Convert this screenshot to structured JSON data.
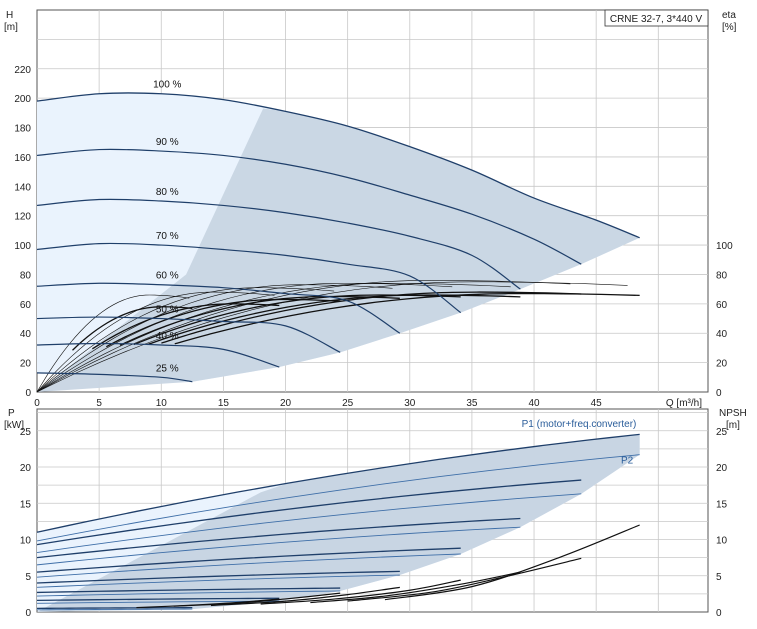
{
  "chart_data": [
    {
      "type": "line",
      "panel": "head-efficiency",
      "title": "CRNE 32-7, 3*440 V",
      "xlabel": "Q [m³/h]",
      "ylabel_left": [
        "H",
        "[m]"
      ],
      "ylabel_right": [
        "eta",
        "[%]"
      ],
      "xlim": [
        0,
        54
      ],
      "ylim": [
        0,
        260
      ],
      "y2lim": [
        0,
        260
      ],
      "xticks": [
        0,
        5,
        10,
        15,
        20,
        25,
        30,
        35,
        40,
        45
      ],
      "yticks": [
        0,
        20,
        40,
        60,
        80,
        100,
        120,
        140,
        160,
        180,
        200,
        220
      ],
      "y2ticks": [
        0,
        20,
        40,
        60,
        80,
        100
      ],
      "grid": true,
      "colors": {
        "curve": "#1f3f6a",
        "fill_light": "#eaf3fd",
        "fill_dark": "#c8d5e3",
        "eta": "#111111"
      },
      "speed_curves": [
        {
          "label": "100 %",
          "qmax": 48.5,
          "points": [
            [
              0,
              198
            ],
            [
              5,
              203
            ],
            [
              10,
              203
            ],
            [
              15,
              199
            ],
            [
              20,
              191
            ],
            [
              25,
              181
            ],
            [
              30,
              167
            ],
            [
              35,
              151
            ],
            [
              40,
              132
            ],
            [
              45,
              117
            ],
            [
              48.5,
              105
            ]
          ]
        },
        {
          "label": "90 %",
          "qmax": 43.8,
          "points": [
            [
              0,
              161
            ],
            [
              5,
              165
            ],
            [
              10,
              164
            ],
            [
              15,
              161
            ],
            [
              20,
              155
            ],
            [
              25,
              146
            ],
            [
              30,
              134
            ],
            [
              35,
              121
            ],
            [
              40,
              104
            ],
            [
              43.8,
              87
            ]
          ]
        },
        {
          "label": "80 %",
          "qmax": 38.9,
          "points": [
            [
              0,
              127
            ],
            [
              5,
              131
            ],
            [
              10,
              130
            ],
            [
              15,
              127
            ],
            [
              20,
              122
            ],
            [
              25,
              115
            ],
            [
              30,
              106
            ],
            [
              35,
              93
            ],
            [
              38.9,
              70
            ]
          ]
        },
        {
          "label": "70 %",
          "qmax": 34.1,
          "points": [
            [
              0,
              97
            ],
            [
              5,
              101
            ],
            [
              10,
              100
            ],
            [
              15,
              97
            ],
            [
              20,
              93
            ],
            [
              25,
              87
            ],
            [
              30,
              79
            ],
            [
              34.1,
              54
            ]
          ]
        },
        {
          "label": "60 %",
          "qmax": 29.2,
          "points": [
            [
              0,
              72
            ],
            [
              5,
              74
            ],
            [
              10,
              73
            ],
            [
              15,
              71
            ],
            [
              20,
              67
            ],
            [
              25,
              62
            ],
            [
              29.2,
              40
            ]
          ]
        },
        {
          "label": "50 %",
          "qmax": 24.4,
          "points": [
            [
              0,
              50
            ],
            [
              5,
              51
            ],
            [
              10,
              50
            ],
            [
              15,
              48
            ],
            [
              20,
              45
            ],
            [
              24.4,
              27
            ]
          ]
        },
        {
          "label": "40 %",
          "qmax": 19.5,
          "points": [
            [
              0,
              32
            ],
            [
              5,
              33
            ],
            [
              10,
              32
            ],
            [
              15,
              29
            ],
            [
              19.5,
              17
            ]
          ]
        },
        {
          "label": "25 %",
          "qmax": 12.5,
          "points": [
            [
              0,
              13
            ],
            [
              5,
              12
            ],
            [
              10,
              10
            ],
            [
              12.5,
              7
            ]
          ]
        }
      ],
      "eta_max": [
        75,
        76,
        74,
        74,
        73,
        71,
        68,
        66
      ]
    },
    {
      "type": "line",
      "panel": "power-npsh",
      "xlabel": "",
      "ylabel_left": [
        "P",
        "[kW]"
      ],
      "ylabel_right": [
        "NPSH",
        "[m]"
      ],
      "xlim": [
        0,
        54
      ],
      "ylim": [
        0,
        28
      ],
      "y2lim": [
        0,
        28
      ],
      "yticks": [
        0,
        5,
        10,
        15,
        20,
        25
      ],
      "y2ticks": [
        0,
        5,
        10,
        15,
        20,
        25
      ],
      "grid": true,
      "annotations": [
        {
          "text": "P1 (motor+freq.converter)",
          "x": 39,
          "y": 25.5
        },
        {
          "text": "P2",
          "x": 47,
          "y": 20.5
        }
      ],
      "p1_curves": [
        {
          "label": "100 %",
          "qmax": 48.5,
          "p0": 11.0,
          "pmax": 24.5
        },
        {
          "label": "90 %",
          "qmax": 43.8,
          "p0": 9.3,
          "pmax": 18.2
        },
        {
          "label": "80 %",
          "qmax": 38.9,
          "p0": 7.5,
          "pmax": 12.9
        },
        {
          "label": "70 %",
          "qmax": 34.1,
          "p0": 5.5,
          "pmax": 8.8
        },
        {
          "label": "60 %",
          "qmax": 29.2,
          "p0": 4.0,
          "pmax": 5.6
        },
        {
          "label": "50 %",
          "qmax": 24.4,
          "p0": 2.7,
          "pmax": 3.3
        },
        {
          "label": "40 %",
          "qmax": 19.5,
          "p0": 1.6,
          "pmax": 1.9
        },
        {
          "label": "25 %",
          "qmax": 12.5,
          "p0": 0.5,
          "pmax": 0.6
        }
      ],
      "p2_curves": [
        {
          "label": "100 %",
          "qmax": 48.5,
          "p0": 9.8,
          "pmax": 21.7
        },
        {
          "label": "90 %",
          "qmax": 43.8,
          "p0": 8.2,
          "pmax": 16.3
        },
        {
          "label": "80 %",
          "qmax": 38.9,
          "p0": 6.5,
          "pmax": 11.7
        },
        {
          "label": "70 %",
          "qmax": 34.1,
          "p0": 4.8,
          "pmax": 8.0
        },
        {
          "label": "60 %",
          "qmax": 29.2,
          "p0": 3.4,
          "pmax": 5.1
        },
        {
          "label": "50 %",
          "qmax": 24.4,
          "p0": 2.2,
          "pmax": 2.9
        },
        {
          "label": "40 %",
          "qmax": 19.5,
          "p0": 1.2,
          "pmax": 1.5
        },
        {
          "label": "25 %",
          "qmax": 12.5,
          "p0": 0.3,
          "pmax": 0.4
        }
      ],
      "npsh_curves": [
        {
          "qmax": 48.5,
          "points": [
            [
              28,
              1.7
            ],
            [
              35,
              3.5
            ],
            [
              42,
              7.5
            ],
            [
              48.5,
              12.0
            ]
          ]
        },
        {
          "qmax": 43.8,
          "points": [
            [
              25,
              1.5
            ],
            [
              32,
              2.8
            ],
            [
              38,
              5.0
            ],
            [
              43.8,
              7.4
            ]
          ]
        },
        {
          "qmax": 38.9,
          "points": [
            [
              22,
              1.3
            ],
            [
              28,
              2.2
            ],
            [
              34,
              3.8
            ],
            [
              38.9,
              5.5
            ]
          ]
        },
        {
          "qmax": 34.1,
          "points": [
            [
              18,
              1.1
            ],
            [
              24,
              1.8
            ],
            [
              30,
              3.0
            ],
            [
              34.1,
              4.4
            ]
          ]
        },
        {
          "qmax": 29.2,
          "points": [
            [
              14,
              0.9
            ],
            [
              20,
              1.5
            ],
            [
              25,
              2.4
            ],
            [
              29.2,
              3.4
            ]
          ]
        },
        {
          "qmax": 24.4,
          "points": [
            [
              11,
              0.8
            ],
            [
              16,
              1.2
            ],
            [
              20,
              1.8
            ],
            [
              24.4,
              2.6
            ]
          ]
        },
        {
          "qmax": 19.5,
          "points": [
            [
              8,
              0.6
            ],
            [
              12,
              0.9
            ],
            [
              16,
              1.3
            ],
            [
              19.5,
              1.8
            ]
          ]
        }
      ]
    }
  ]
}
